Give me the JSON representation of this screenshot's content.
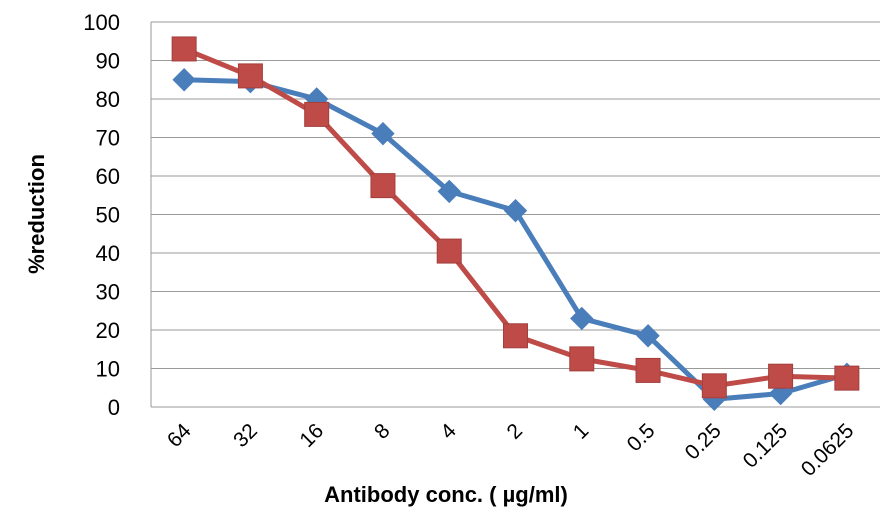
{
  "chart_data": {
    "type": "line",
    "title": "",
    "xlabel": "Antibody conc. ( µg/ml)",
    "ylabel": "%reduction",
    "ylim": [
      0,
      100
    ],
    "yticks": [
      "0",
      "10",
      "20",
      "30",
      "40",
      "50",
      "60",
      "70",
      "80",
      "90",
      "100"
    ],
    "grid": "horizontal",
    "categories": [
      "64",
      "32",
      "16",
      "8",
      "4",
      "2",
      "1",
      "0.5",
      "0.25",
      "0.125",
      "0.0625"
    ],
    "series": [
      {
        "color": "#4a7ebb",
        "marker": "diamond",
        "values": [
          85,
          84.5,
          80,
          71,
          56,
          51,
          23,
          18.5,
          2,
          3.5,
          8.5
        ]
      },
      {
        "color": "#be4b48",
        "marker": "square",
        "values": [
          93,
          86,
          76,
          57.5,
          40.5,
          18.5,
          12.5,
          9.5,
          5.5,
          8,
          7.5
        ]
      }
    ]
  }
}
